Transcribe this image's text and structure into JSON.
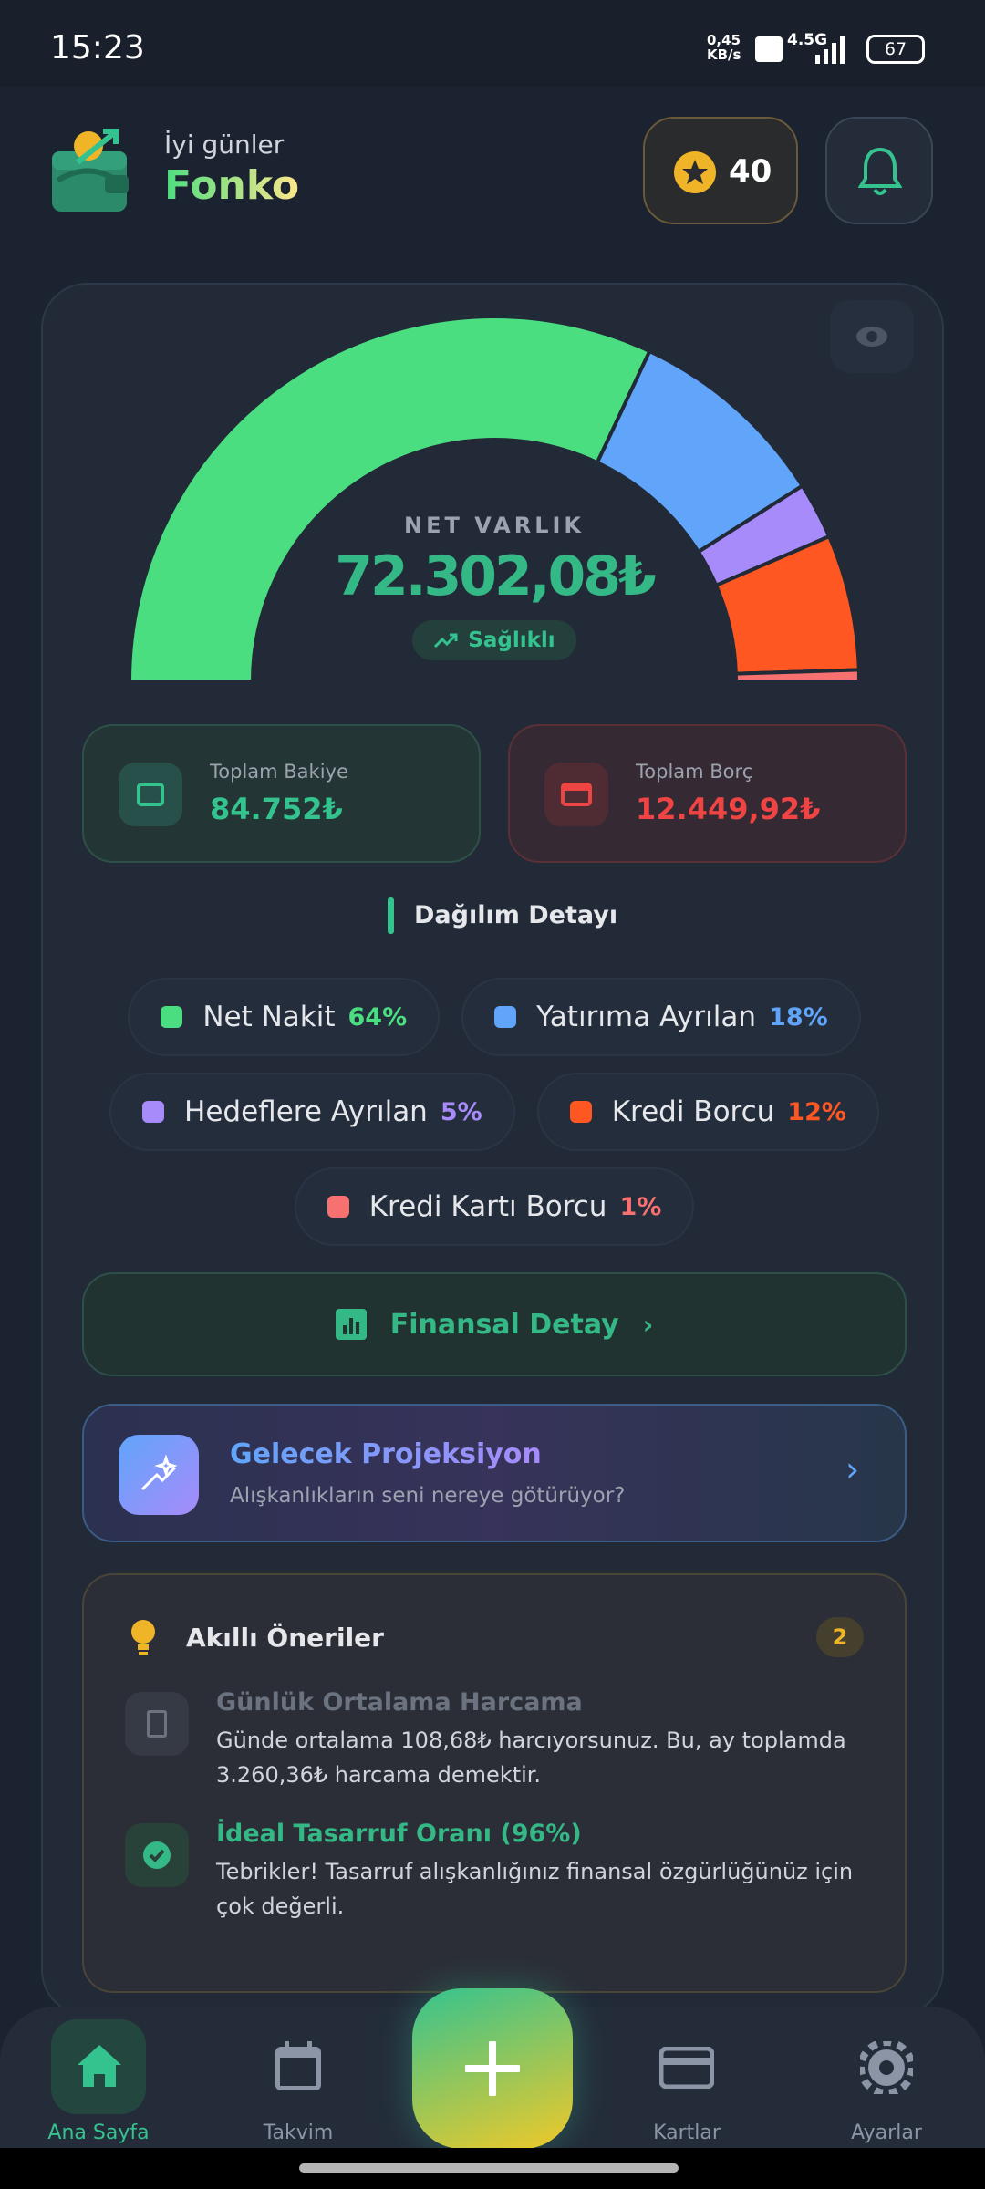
{
  "status_bar": {
    "time": "15:23",
    "speed": "0,45 KB/s",
    "network": "4.5G",
    "battery": "67"
  },
  "header": {
    "greeting": "İyi günler",
    "app_name": "Fonko",
    "points": "40"
  },
  "net_worth": {
    "label": "NET VARLIK",
    "value": "72.302,08₺",
    "status": "Sağlıklı"
  },
  "summary": [
    {
      "label": "Toplam Bakiye",
      "value": "84.752₺"
    },
    {
      "label": "Toplam Borç",
      "value": "12.449,92₺"
    }
  ],
  "distribution": {
    "type": "gauge",
    "title": "Dağılım Detayı",
    "categories": [
      "Net Nakit",
      "Yatırıma Ayrılan",
      "Hedeflere Ayrılan",
      "Kredi Borcu",
      "Kredi Kartı Borcu"
    ],
    "values": [
      64,
      18,
      5,
      12,
      1
    ],
    "value_labels": [
      "64%",
      "18%",
      "5%",
      "12%",
      "1%"
    ],
    "colors": [
      "#4ade80",
      "#60a5fa",
      "#a78bfa",
      "#ff5722",
      "#f87171"
    ]
  },
  "financial_detail": "Finansal Detay",
  "projection": {
    "title": "Gelecek Projeksiyon",
    "subtitle": "Alışkanlıkların seni nereye götürüyor?"
  },
  "suggestions": {
    "title": "Akıllı Öneriler",
    "count": "2",
    "items": [
      {
        "title": "Günlük Ortalama Harcama",
        "text": "Günde ortalama 108,68₺ harcıyorsunuz. Bu, ay toplamda 3.260,36₺ harcama demektir."
      },
      {
        "title": "İdeal Tasarruf Oranı (96%)",
        "text": "Tebrikler! Tasarruf alışkanlığınız finansal özgürlüğünüz için çok değerli."
      }
    ]
  },
  "nav": [
    "Ana Sayfa",
    "Takvim",
    "Kartlar",
    "Ayarlar"
  ]
}
